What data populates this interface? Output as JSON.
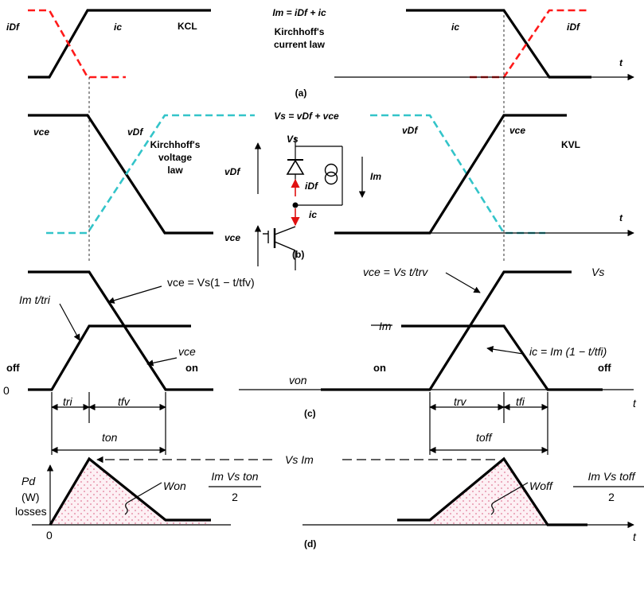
{
  "panel_a": {
    "i_df": "iDf",
    "i_c": "ic",
    "kcl": "KCL",
    "equation": "Im = iDf + ic",
    "kirchhoff_current_1": "Kirchhoff's",
    "kirchhoff_current_2": "current law",
    "t_axis": "t",
    "caption": "(a)",
    "i_c_right": "ic",
    "i_df_right": "iDf"
  },
  "panel_b": {
    "equation": "Vs = vDf + vce",
    "v_ce": "vce",
    "v_df": "vDf",
    "kirchhoff_voltage_1": "Kirchhoff's",
    "kirchhoff_voltage_2": "voltage",
    "kirchhoff_voltage_3": "law",
    "v_s": "Vs",
    "v_df_circuit": "vDf",
    "i_df_circuit": "iDf",
    "i_m": "Im",
    "i_c_circuit": "ic",
    "v_ce_circuit": "vce",
    "caption": "(b)",
    "v_df_right": "vDf",
    "v_ce_right": "vce",
    "kvl": "KVL",
    "t_axis": "t"
  },
  "panel_c": {
    "vce_on_formula": "vce = Vs(1 − t/tfv)",
    "im_t_label": "Im t/tri",
    "vce_label": "vce",
    "off_left": "off",
    "on_left": "on",
    "zero": "0",
    "v_on": "von",
    "t_ri": "tri",
    "t_fv": "tfv",
    "t_on": "ton",
    "caption": "(c)",
    "vce_off_formula": "vce = Vs t/trv",
    "v_s": "Vs",
    "i_m": "Im",
    "ic_formula": "ic = Im (1 − t/tfi)",
    "on_right": "on",
    "off_right": "off",
    "t_rv": "trv",
    "t_fi": "tfi",
    "t_off": "toff",
    "t_axis": "t"
  },
  "panel_d": {
    "p_d": "Pd",
    "w_unit": "(W)",
    "losses": "losses",
    "vs_im": "Vs Im",
    "w_on": "Won",
    "w_on_num": "Im Vs ton",
    "w_on_den": "2",
    "w_off": "Woff",
    "w_off_num": "Im Vs toff",
    "w_off_den": "2",
    "zero": "0",
    "caption": "(d)",
    "t_axis": "t"
  },
  "colors": {
    "current_dash": "#ff1a1a",
    "voltage_dash": "#33c4c9",
    "loss_fill": "#f5c6d4"
  }
}
